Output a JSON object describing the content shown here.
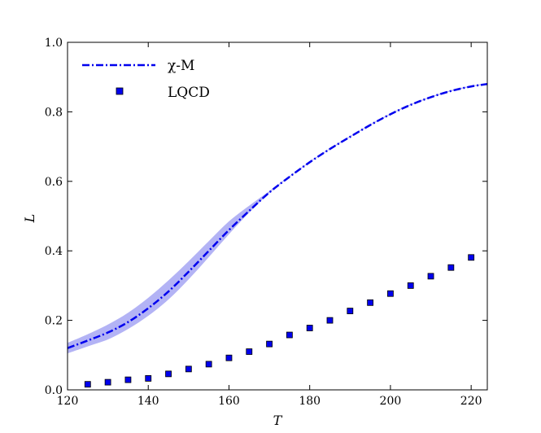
{
  "chart_data": {
    "type": "line",
    "xlabel": "T",
    "ylabel": "L",
    "xlim": [
      120,
      224
    ],
    "ylim": [
      0.0,
      1.0
    ],
    "xticks": [
      "120",
      "140",
      "160",
      "180",
      "200",
      "220"
    ],
    "xtick_values": [
      120,
      140,
      160,
      180,
      200,
      220
    ],
    "yticks": [
      "0.0",
      "0.2",
      "0.4",
      "0.6",
      "0.8",
      "1.0"
    ],
    "ytick_values": [
      0.0,
      0.2,
      0.4,
      0.6,
      0.8,
      1.0
    ],
    "grid": false,
    "legend_location": "top-left",
    "series": [
      {
        "name": "χ-M",
        "style": "dash-dot line with shaded band",
        "color": "#0000ee",
        "band_color": "#b3b3f5",
        "x": [
          120,
          125,
          130,
          135,
          140,
          145,
          150,
          155,
          160,
          165,
          170,
          175,
          180,
          185,
          190,
          195,
          200,
          205,
          210,
          215,
          220,
          224
        ],
        "y": [
          0.12,
          0.142,
          0.165,
          0.195,
          0.235,
          0.283,
          0.34,
          0.4,
          0.46,
          0.515,
          0.568,
          0.613,
          0.655,
          0.693,
          0.728,
          0.762,
          0.793,
          0.82,
          0.842,
          0.86,
          0.873,
          0.88
        ],
        "band_lower": [
          0.105,
          0.125,
          0.145,
          0.175,
          0.213,
          0.26,
          0.318,
          0.382,
          0.448,
          0.51,
          0.566,
          0.612,
          0.654,
          0.692,
          0.727,
          0.761,
          0.792,
          0.819,
          0.841,
          0.859,
          0.872,
          0.879
        ],
        "band_upper": [
          0.135,
          0.16,
          0.188,
          0.222,
          0.265,
          0.315,
          0.37,
          0.428,
          0.485,
          0.53,
          0.572,
          0.615,
          0.657,
          0.695,
          0.73,
          0.764,
          0.795,
          0.822,
          0.844,
          0.862,
          0.875,
          0.882
        ]
      },
      {
        "name": "LQCD",
        "style": "square markers with error bars",
        "color": "#0000ee",
        "x": [
          125,
          130,
          135,
          140,
          145,
          150,
          155,
          160,
          165,
          170,
          175,
          180,
          185,
          190,
          195,
          200,
          205,
          210,
          215,
          220
        ],
        "y": [
          0.016,
          0.022,
          0.029,
          0.033,
          0.046,
          0.06,
          0.074,
          0.092,
          0.11,
          0.132,
          0.158,
          0.178,
          0.2,
          0.227,
          0.251,
          0.277,
          0.3,
          0.327,
          0.352,
          0.381
        ],
        "yerr": [
          0.004,
          0.004,
          0.004,
          0.004,
          0.004,
          0.004,
          0.004,
          0.004,
          0.004,
          0.004,
          0.004,
          0.004,
          0.004,
          0.004,
          0.004,
          0.004,
          0.004,
          0.004,
          0.004,
          0.004
        ]
      }
    ]
  }
}
